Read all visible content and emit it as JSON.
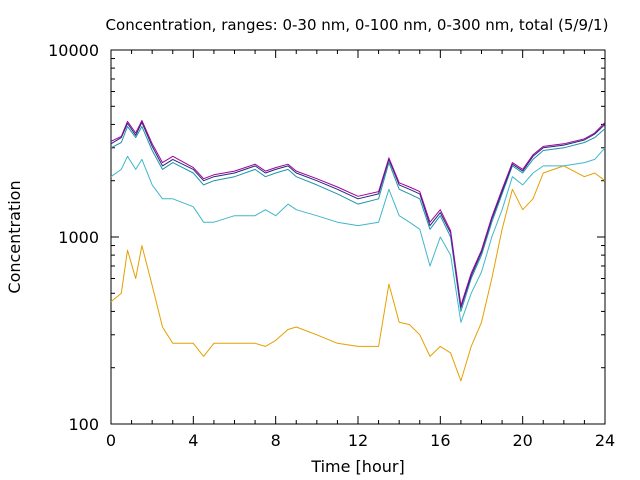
{
  "chart_data": {
    "type": "line",
    "title": "Concentration, ranges: 0-30 nm, 0-100 nm, 0-300 nm, total (5/9/1)",
    "xlabel": "Time [hour]",
    "ylabel": "Concentration",
    "xlim": [
      0,
      24
    ],
    "ylim": [
      100,
      10000
    ],
    "yscale": "log",
    "grid": false,
    "xticks": [
      0,
      4,
      8,
      12,
      16,
      20,
      24
    ],
    "xtick_labels": [
      "0",
      "4",
      "8",
      "12",
      "16",
      "20",
      "24"
    ],
    "yticks": [
      100,
      1000,
      10000
    ],
    "ytick_labels": [
      "100",
      "1000",
      "10000"
    ],
    "x": [
      0.0,
      0.5,
      0.8,
      1.2,
      1.5,
      2.0,
      2.5,
      3.0,
      4.0,
      4.5,
      5.0,
      6.0,
      7.0,
      7.5,
      8.0,
      8.6,
      9.0,
      10.0,
      11.0,
      12.0,
      13.0,
      13.5,
      14.0,
      14.5,
      15.0,
      15.5,
      16.0,
      16.5,
      17.0,
      17.5,
      18.0,
      18.5,
      19.0,
      19.5,
      20.0,
      20.5,
      21.0,
      22.0,
      23.0,
      23.5,
      24.0
    ],
    "series": [
      {
        "color": "#e5a000",
        "values": [
          450,
          500,
          850,
          600,
          900,
          550,
          330,
          270,
          270,
          230,
          270,
          270,
          270,
          260,
          280,
          320,
          330,
          300,
          270,
          260,
          260,
          560,
          350,
          340,
          300,
          230,
          260,
          240,
          170,
          260,
          350,
          600,
          1100,
          1800,
          1400,
          1600,
          2200,
          2400,
          2100,
          2200,
          2000
        ]
      },
      {
        "color": "#3fb8c9",
        "values": [
          2100,
          2300,
          2700,
          2300,
          2600,
          1900,
          1600,
          1600,
          1450,
          1200,
          1200,
          1300,
          1300,
          1400,
          1300,
          1500,
          1400,
          1300,
          1200,
          1150,
          1200,
          1800,
          1300,
          1200,
          1100,
          700,
          1000,
          800,
          350,
          500,
          650,
          1000,
          1400,
          2100,
          1900,
          2200,
          2400,
          2400,
          2500,
          2600,
          3000
        ]
      },
      {
        "color": "#1f93a8",
        "values": [
          3000,
          3200,
          3900,
          3400,
          3900,
          2900,
          2300,
          2500,
          2200,
          1900,
          2000,
          2100,
          2300,
          2100,
          2200,
          2300,
          2100,
          1900,
          1700,
          1500,
          1600,
          2500,
          1800,
          1700,
          1600,
          1100,
          1300,
          1000,
          400,
          600,
          800,
          1200,
          1700,
          2400,
          2200,
          2600,
          2900,
          3000,
          3200,
          3400,
          3800
        ]
      },
      {
        "color": "#222a7a",
        "values": [
          3150,
          3400,
          4050,
          3500,
          4100,
          3050,
          2400,
          2600,
          2300,
          2000,
          2100,
          2200,
          2400,
          2200,
          2300,
          2400,
          2200,
          2000,
          1800,
          1600,
          1700,
          2600,
          1900,
          1800,
          1700,
          1150,
          1350,
          1050,
          420,
          620,
          830,
          1250,
          1750,
          2450,
          2250,
          2700,
          3000,
          3100,
          3300,
          3550,
          4000
        ]
      },
      {
        "color": "#a000a0",
        "values": [
          3250,
          3450,
          4150,
          3600,
          4200,
          3150,
          2500,
          2700,
          2350,
          2050,
          2150,
          2250,
          2450,
          2250,
          2350,
          2450,
          2250,
          2050,
          1850,
          1650,
          1750,
          2650,
          1950,
          1850,
          1750,
          1200,
          1400,
          1080,
          430,
          640,
          850,
          1280,
          1800,
          2500,
          2300,
          2750,
          3050,
          3150,
          3350,
          3600,
          4100
        ]
      }
    ]
  }
}
